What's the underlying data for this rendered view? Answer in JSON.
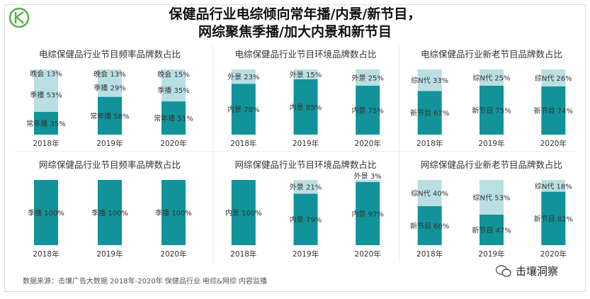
{
  "header": {
    "title_line1": "保健品行业电综倾向常年播/内景/新节目，",
    "title_line2": "网综聚焦季播/加大内景和新节目"
  },
  "footer": {
    "source": "数据来源：击壤广告大数据 2018年-2020年 保健品行业 电综&网综 内容监播",
    "brand": "击壤洞察"
  },
  "colors": {
    "dark": "#12939a",
    "light": "#b9dfe3",
    "text": "#333333"
  },
  "chart_data": [
    {
      "type": "bar",
      "stacked": true,
      "title": "电综保健品行业节目频率品牌数占比",
      "categories": [
        "2018年",
        "2019年",
        "2020年"
      ],
      "series": [
        {
          "name": "常年播",
          "values": [
            35,
            58,
            51
          ],
          "color": "dark"
        },
        {
          "name": "季播",
          "values": [
            53,
            29,
            35
          ],
          "color": "light"
        },
        {
          "name": "晚会",
          "values": [
            13,
            13,
            15
          ],
          "color": "light"
        }
      ]
    },
    {
      "type": "bar",
      "stacked": true,
      "title": "电综保健品行业节目环境品牌数占比",
      "categories": [
        "2018年",
        "2019年",
        "2020年"
      ],
      "series": [
        {
          "name": "内景",
          "values": [
            78,
            85,
            75
          ],
          "color": "dark"
        },
        {
          "name": "外景",
          "values": [
            23,
            15,
            25
          ],
          "color": "light"
        }
      ]
    },
    {
      "type": "bar",
      "stacked": true,
      "title": "电综保健品行业新老节目品牌数占比",
      "categories": [
        "2018年",
        "2019年",
        "2020年"
      ],
      "series": [
        {
          "name": "新节目",
          "values": [
            67,
            75,
            74
          ],
          "color": "dark"
        },
        {
          "name": "综N代",
          "values": [
            33,
            25,
            26
          ],
          "color": "light"
        }
      ]
    },
    {
      "type": "bar",
      "stacked": true,
      "title": "网综保健品行业节目频率品牌数占比",
      "categories": [
        "2018年",
        "2019年",
        "2020年"
      ],
      "series": [
        {
          "name": "季播",
          "values": [
            100,
            100,
            100
          ],
          "color": "dark"
        }
      ]
    },
    {
      "type": "bar",
      "stacked": true,
      "title": "网综保健品行业节目环境品牌数占比",
      "categories": [
        "2018年",
        "2019年",
        "2020年"
      ],
      "series": [
        {
          "name": "内景",
          "values": [
            100,
            79,
            97
          ],
          "color": "dark"
        },
        {
          "name": "外景",
          "values": [
            null,
            21,
            3
          ],
          "color": "light"
        }
      ]
    },
    {
      "type": "bar",
      "stacked": true,
      "title": "网综保健品行业新老节目品牌数占比",
      "categories": [
        "2018年",
        "2019年",
        "2020年"
      ],
      "series": [
        {
          "name": "新节目",
          "values": [
            60,
            47,
            82
          ],
          "color": "dark"
        },
        {
          "name": "综N代",
          "values": [
            40,
            53,
            18
          ],
          "color": "light"
        }
      ]
    }
  ]
}
